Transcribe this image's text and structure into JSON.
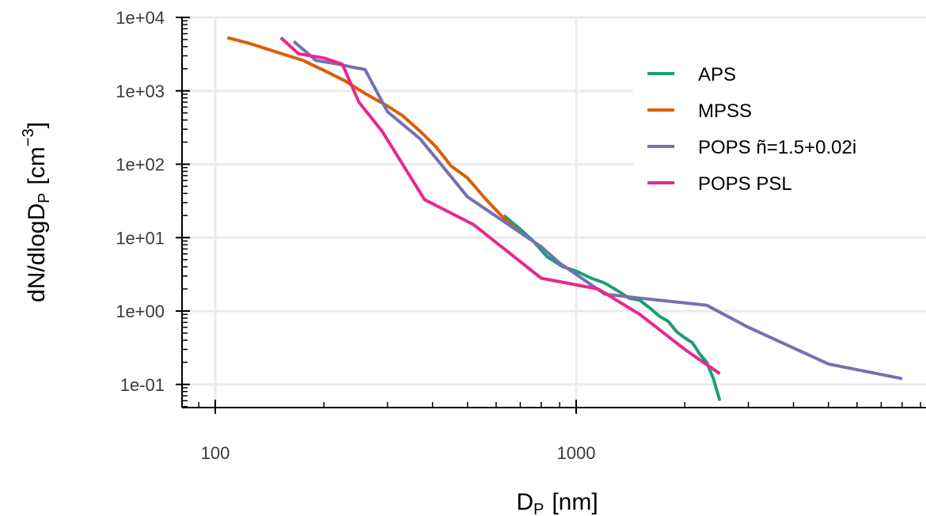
{
  "chart_data": {
    "type": "line",
    "x_scale": "log",
    "y_scale": "log",
    "xlabel_base": "D",
    "xlabel_sub": "P",
    "xlabel_unit": "[nm]",
    "ylabel_base": "dN/dlogD",
    "ylabel_sub": "P",
    "ylabel_unit_pre": "[cm",
    "ylabel_unit_sup": "−3",
    "ylabel_unit_post": "]",
    "xlim": [
      80,
      10000
    ],
    "ylim": [
      0.05,
      12000
    ],
    "x_ticks": [
      {
        "value": 100,
        "label": "100"
      },
      {
        "value": 1000,
        "label": "1000"
      }
    ],
    "y_ticks": [
      {
        "value": 10000,
        "label": "1e+04"
      },
      {
        "value": 1000,
        "label": "1e+03"
      },
      {
        "value": 100,
        "label": "1e+02"
      },
      {
        "value": 10,
        "label": "1e+01"
      },
      {
        "value": 1,
        "label": "1e+00"
      },
      {
        "value": 0.1,
        "label": "1e-01"
      }
    ],
    "grid": true,
    "legend_position": "top-right",
    "series": [
      {
        "name": "APS",
        "color": "#1b9e77",
        "points": [
          [
            630,
            20
          ],
          [
            700,
            13
          ],
          [
            760,
            9
          ],
          [
            830,
            5.5
          ],
          [
            920,
            4
          ],
          [
            1000,
            3.5
          ],
          [
            1100,
            2.8
          ],
          [
            1200,
            2.4
          ],
          [
            1300,
            1.9
          ],
          [
            1400,
            1.5
          ],
          [
            1500,
            1.4
          ],
          [
            1600,
            1.1
          ],
          [
            1700,
            0.85
          ],
          [
            1800,
            0.72
          ],
          [
            1900,
            0.52
          ],
          [
            2000,
            0.43
          ],
          [
            2100,
            0.37
          ],
          [
            2200,
            0.26
          ],
          [
            2300,
            0.2
          ],
          [
            2400,
            0.12
          ],
          [
            2500,
            0.06
          ]
        ]
      },
      {
        "name": "MPSS",
        "color": "#d95f02",
        "points": [
          [
            108,
            5300
          ],
          [
            125,
            4400
          ],
          [
            150,
            3300
          ],
          [
            175,
            2600
          ],
          [
            200,
            1900
          ],
          [
            230,
            1350
          ],
          [
            260,
            920
          ],
          [
            300,
            620
          ],
          [
            330,
            460
          ],
          [
            370,
            280
          ],
          [
            410,
            170
          ],
          [
            450,
            95
          ],
          [
            500,
            65
          ],
          [
            560,
            34
          ],
          [
            620,
            20
          ],
          [
            680,
            13
          ]
        ]
      },
      {
        "name": "POPS ñ=1.5+0.02i",
        "color": "#7570b3",
        "points": [
          [
            165,
            4700
          ],
          [
            190,
            2600
          ],
          [
            220,
            2300
          ],
          [
            240,
            2100
          ],
          [
            260,
            1950
          ],
          [
            300,
            520
          ],
          [
            370,
            220
          ],
          [
            500,
            36
          ],
          [
            800,
            7.5
          ],
          [
            900,
            4.5
          ],
          [
            1200,
            1.7
          ],
          [
            1500,
            1.5
          ],
          [
            2300,
            1.2
          ],
          [
            3000,
            0.6
          ],
          [
            5000,
            0.19
          ],
          [
            8000,
            0.12
          ]
        ]
      },
      {
        "name": "POPS PSL",
        "color": "#e7298a",
        "points": [
          [
            152,
            5300
          ],
          [
            170,
            3200
          ],
          [
            200,
            2800
          ],
          [
            225,
            2300
          ],
          [
            250,
            700
          ],
          [
            290,
            280
          ],
          [
            380,
            33
          ],
          [
            520,
            15
          ],
          [
            800,
            2.8
          ],
          [
            1150,
            2
          ],
          [
            1500,
            0.9
          ],
          [
            2000,
            0.3
          ],
          [
            2500,
            0.14
          ]
        ]
      }
    ]
  }
}
